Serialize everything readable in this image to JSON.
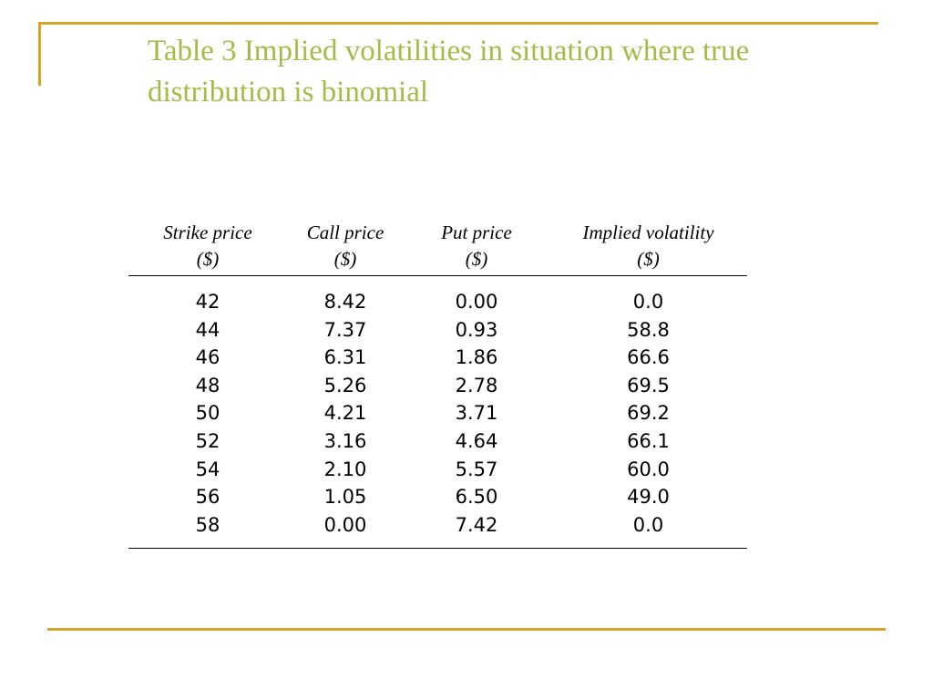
{
  "slide": {
    "title": "Table 3 Implied volatilities in situation where true distribution is binomial"
  },
  "table": {
    "columns": [
      {
        "label": "Strike price",
        "unit": "($)"
      },
      {
        "label": "Call price",
        "unit": "($)"
      },
      {
        "label": "Put price",
        "unit": "($)"
      },
      {
        "label": "Implied volatility",
        "unit": "($)"
      }
    ],
    "rows": [
      [
        "42",
        "8.42",
        "0.00",
        "0.0"
      ],
      [
        "44",
        "7.37",
        "0.93",
        "58.8"
      ],
      [
        "46",
        "6.31",
        "1.86",
        "66.6"
      ],
      [
        "48",
        "5.26",
        "2.78",
        "69.5"
      ],
      [
        "50",
        "4.21",
        "3.71",
        "69.2"
      ],
      [
        "52",
        "3.16",
        "4.64",
        "66.1"
      ],
      [
        "54",
        "2.10",
        "5.57",
        "60.0"
      ],
      [
        "56",
        "1.05",
        "6.50",
        "49.0"
      ],
      [
        "58",
        "0.00",
        "7.42",
        "0.0"
      ]
    ]
  },
  "colors": {
    "title": "#a8b948",
    "frame": "#d4a42a",
    "text": "#000000"
  }
}
